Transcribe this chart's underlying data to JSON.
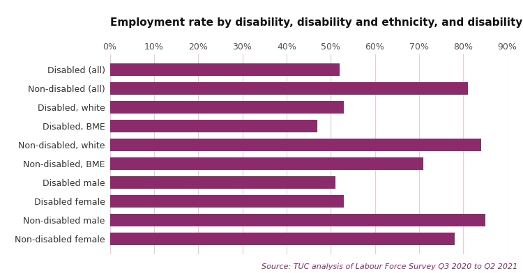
{
  "title": "Employment rate by disability, disability and ethnicity, and disability and gender",
  "categories_top_to_bottom": [
    "Disabled (all)",
    "Non-disabled (all)",
    "Disabled, white",
    "Disabled, BME",
    "Non-disabled, white",
    "Non-disabled, BME",
    "Disabled male",
    "Disabled female",
    "Non-disabled male",
    "Non-disabled female"
  ],
  "values_top_to_bottom": [
    52,
    81,
    53,
    47,
    84,
    71,
    51,
    53,
    85,
    78
  ],
  "bar_color": "#8B2B6B",
  "xlim": [
    0,
    90
  ],
  "xticks": [
    0,
    10,
    20,
    30,
    40,
    50,
    60,
    70,
    80,
    90
  ],
  "source_text": "Source: TUC analysis of Labour Force Survey Q3 2020 to Q2 2021",
  "title_fontsize": 11,
  "label_fontsize": 9,
  "tick_fontsize": 9,
  "source_fontsize": 8,
  "background_color": "#ffffff",
  "grid_color": "#e8ccd8"
}
